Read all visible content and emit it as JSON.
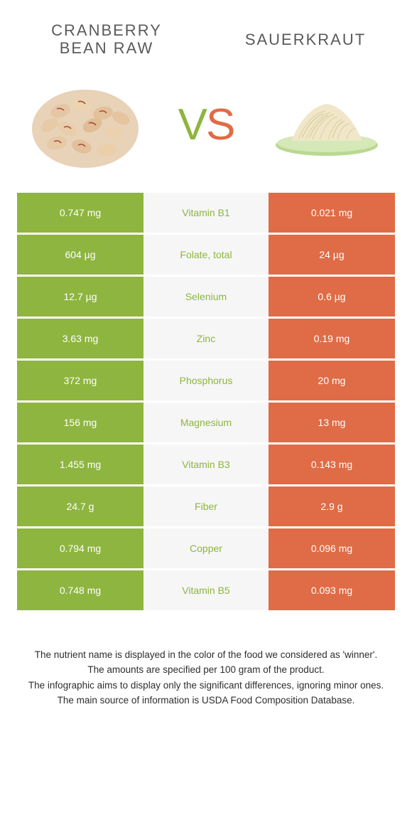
{
  "colors": {
    "left_food": "#8eb53f",
    "right_food": "#df6c46",
    "mid_bg": "#f6f6f6",
    "mid_text_green": "#8eb53f",
    "mid_text_orange": "#df6c46",
    "background": "#ffffff",
    "header_text": "#5a5a5a"
  },
  "header": {
    "left_line1": "Cranberry",
    "left_line2": "bean raw",
    "right": "Sauerkraut"
  },
  "vs": {
    "v": "V",
    "s": "S"
  },
  "rows": [
    {
      "left": "0.747 mg",
      "label": "Vitamin B1",
      "right": "0.021 mg",
      "winner": "left"
    },
    {
      "left": "604 µg",
      "label": "Folate, total",
      "right": "24 µg",
      "winner": "left"
    },
    {
      "left": "12.7 µg",
      "label": "Selenium",
      "right": "0.6 µg",
      "winner": "left"
    },
    {
      "left": "3.63 mg",
      "label": "Zinc",
      "right": "0.19 mg",
      "winner": "left"
    },
    {
      "left": "372 mg",
      "label": "Phosphorus",
      "right": "20 mg",
      "winner": "left"
    },
    {
      "left": "156 mg",
      "label": "Magnesium",
      "right": "13 mg",
      "winner": "left"
    },
    {
      "left": "1.455 mg",
      "label": "Vitamin B3",
      "right": "0.143 mg",
      "winner": "left"
    },
    {
      "left": "24.7 g",
      "label": "Fiber",
      "right": "2.9 g",
      "winner": "left"
    },
    {
      "left": "0.794 mg",
      "label": "Copper",
      "right": "0.096 mg",
      "winner": "left"
    },
    {
      "left": "0.748 mg",
      "label": "Vitamin B5",
      "right": "0.093 mg",
      "winner": "left"
    }
  ],
  "footer": {
    "line1": "The nutrient name is displayed in the color of the food we considered as 'winner'.",
    "line2": "The amounts are specified per 100 gram of the product.",
    "line3": "The infographic aims to display only the significant differences, ignoring minor ones.",
    "line4": "The main source of information is USDA Food Composition Database."
  }
}
